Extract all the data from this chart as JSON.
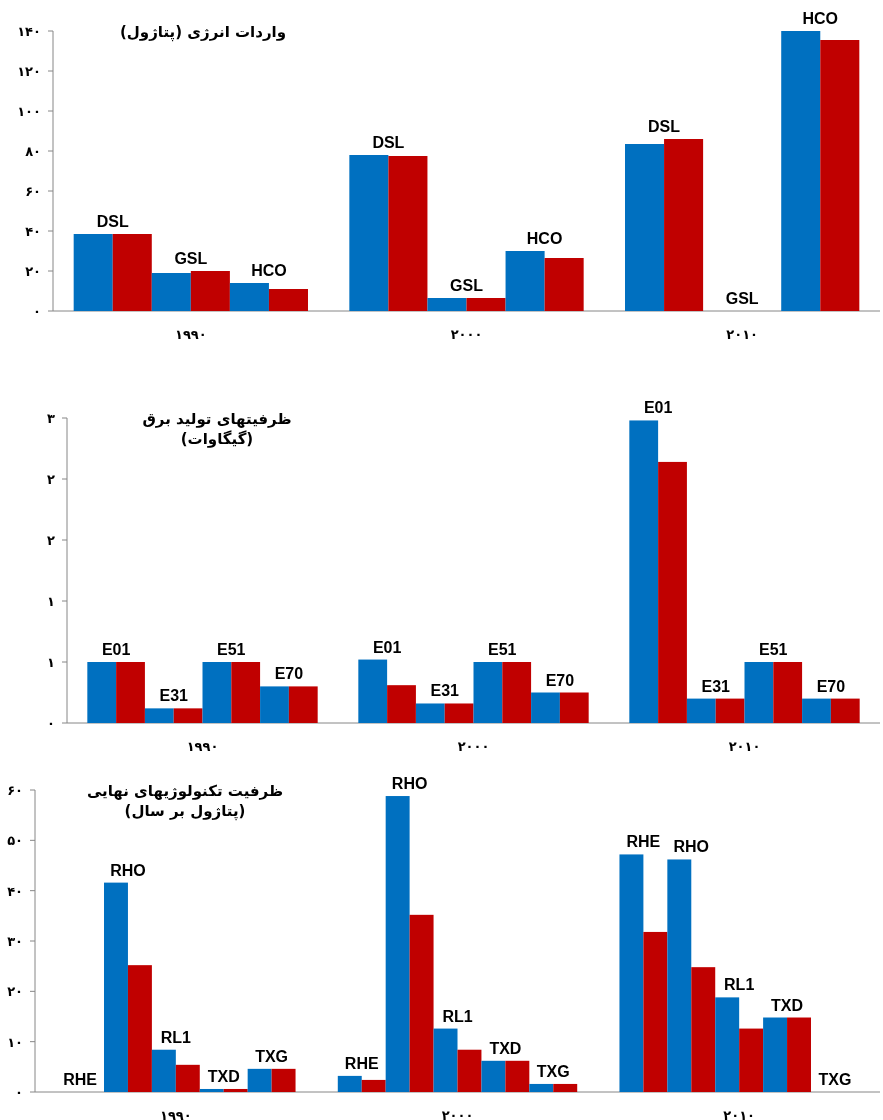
{
  "chart_data": [
    {
      "type": "bar",
      "title": "واردات انرژی (پتاژول)",
      "categories": [
        "۱۹۹۰",
        "۲۰۰۰",
        "۲۰۱۰"
      ],
      "ylim": [
        0,
        140
      ],
      "yticks": [
        {
          "value": 0,
          "label": "۰"
        },
        {
          "value": 20,
          "label": "۲۰"
        },
        {
          "value": 40,
          "label": "۴۰"
        },
        {
          "value": 60,
          "label": "۶۰"
        },
        {
          "value": 80,
          "label": "۸۰"
        },
        {
          "value": 100,
          "label": "۱۰۰"
        },
        {
          "value": 120,
          "label": "۱۲۰"
        },
        {
          "value": 140,
          "label": "۱۴۰"
        }
      ],
      "series": [
        {
          "name": "DSL",
          "color": "#0070c0",
          "values": [
            38.5,
            78,
            83.5
          ]
        },
        {
          "color": "#c00000",
          "values": [
            38.5,
            77.5,
            86
          ]
        },
        {
          "name": "GSL",
          "color": "#0070c0",
          "values": [
            19,
            6.5,
            null
          ]
        },
        {
          "color": "#c00000",
          "values": [
            20,
            6.5,
            null
          ]
        },
        {
          "name": "HCO",
          "color": "#0070c0",
          "values": [
            14,
            30,
            140
          ]
        },
        {
          "color": "#c00000",
          "values": [
            11,
            26.5,
            135.5
          ]
        }
      ]
    },
    {
      "type": "bar",
      "title": "ظرفیتهای تولید برق\n(گیگاوات)",
      "categories": [
        "۱۹۹۰",
        "۲۰۰۰",
        "۲۰۱۰"
      ],
      "ylim": [
        0,
        2.5
      ],
      "yticks": [
        {
          "value": 0,
          "label": "۰"
        },
        {
          "value": 0.5,
          "label": "۱"
        },
        {
          "value": 1,
          "label": "۱"
        },
        {
          "value": 1.5,
          "label": "۲"
        },
        {
          "value": 2,
          "label": "۲"
        },
        {
          "value": 2.5,
          "label": "۳"
        }
      ],
      "series": [
        {
          "name": "E01",
          "color": "#0070c0",
          "values": [
            0.5,
            0.52,
            2.48
          ]
        },
        {
          "color": "#c00000",
          "values": [
            0.5,
            0.31,
            2.14
          ]
        },
        {
          "name": "E31",
          "color": "#0070c0",
          "values": [
            0.12,
            0.16,
            0.2
          ]
        },
        {
          "color": "#c00000",
          "values": [
            0.12,
            0.16,
            0.2
          ]
        },
        {
          "name": "E51",
          "color": "#0070c0",
          "values": [
            0.5,
            0.5,
            0.5
          ]
        },
        {
          "color": "#c00000",
          "values": [
            0.5,
            0.5,
            0.5
          ]
        },
        {
          "name": "E70",
          "color": "#0070c0",
          "values": [
            0.3,
            0.25,
            0.2
          ]
        },
        {
          "color": "#c00000",
          "values": [
            0.3,
            0.25,
            0.2
          ]
        }
      ]
    },
    {
      "type": "bar",
      "title": "ظرفیت تکنولوژیهای نهایی\n(پتاژول بر سال)",
      "categories": [
        "۱۹۹۰",
        "۲۰۰۰",
        "۲۰۱۰"
      ],
      "ylim": [
        0,
        60
      ],
      "yticks": [
        {
          "value": 0,
          "label": "۰"
        },
        {
          "value": 10,
          "label": "۱۰"
        },
        {
          "value": 20,
          "label": "۲۰"
        },
        {
          "value": 30,
          "label": "۳۰"
        },
        {
          "value": 40,
          "label": "۴۰"
        },
        {
          "value": 50,
          "label": "۵۰"
        },
        {
          "value": 60,
          "label": "۶۰"
        }
      ],
      "series": [
        {
          "name": "RHE",
          "color": "#0070c0",
          "values": [
            null,
            3.2,
            47.2
          ]
        },
        {
          "color": "#c00000",
          "values": [
            null,
            2.4,
            31.8
          ]
        },
        {
          "name": "RHO",
          "color": "#0070c0",
          "values": [
            41.6,
            58.8,
            46.2
          ]
        },
        {
          "color": "#c00000",
          "values": [
            25.2,
            35.2,
            24.8
          ]
        },
        {
          "name": "RL1",
          "color": "#0070c0",
          "values": [
            8.4,
            12.6,
            18.8
          ]
        },
        {
          "color": "#c00000",
          "values": [
            5.4,
            8.4,
            12.6
          ]
        },
        {
          "name": "TXD",
          "color": "#0070c0",
          "values": [
            0.6,
            6.2,
            14.8
          ]
        },
        {
          "color": "#c00000",
          "values": [
            0.6,
            6.2,
            14.8
          ]
        },
        {
          "name": "TXG",
          "color": "#0070c0",
          "values": [
            4.6,
            1.6,
            null
          ]
        },
        {
          "color": "#c00000",
          "values": [
            4.6,
            1.6,
            null
          ]
        }
      ]
    }
  ]
}
